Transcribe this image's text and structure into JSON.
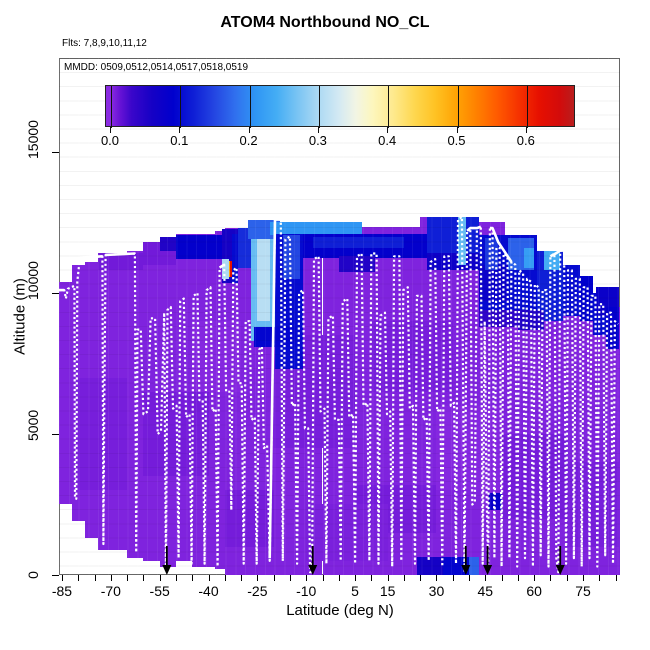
{
  "title": "ATOM4 Northbound NO_CL",
  "subtitle_flights": "Flts: 7,8,9,10,11,12",
  "mmdd_label": "MMDD: 0509,0512,0514,0517,0518,0519",
  "colorbar": {
    "tick_labels": [
      "0.0",
      "0.1",
      "0.2",
      "0.3",
      "0.4",
      "0.5",
      "0.6"
    ],
    "tick_values": [
      0.0,
      0.1,
      0.2,
      0.3,
      0.4,
      0.5,
      0.6
    ],
    "value_min": 0.0,
    "value_max": 0.675,
    "stops": [
      [
        0.0,
        "#8a2be2"
      ],
      [
        0.012,
        "#6a14d6"
      ],
      [
        0.03,
        "#3a06ca"
      ],
      [
        0.06,
        "#1501c5"
      ],
      [
        0.09,
        "#0000cd"
      ],
      [
        0.12,
        "#0f1fd6"
      ],
      [
        0.15,
        "#2446e2"
      ],
      [
        0.18,
        "#3070ee"
      ],
      [
        0.21,
        "#2f96f4"
      ],
      [
        0.24,
        "#44adf4"
      ],
      [
        0.27,
        "#79c4f3"
      ],
      [
        0.3,
        "#abd9f3"
      ],
      [
        0.33,
        "#d3e9f3"
      ],
      [
        0.355,
        "#f2f5e4"
      ],
      [
        0.38,
        "#fdf6bc"
      ],
      [
        0.41,
        "#fee98c"
      ],
      [
        0.44,
        "#fed74f"
      ],
      [
        0.47,
        "#ffc223"
      ],
      [
        0.5,
        "#ffa405"
      ],
      [
        0.53,
        "#ff8000"
      ],
      [
        0.56,
        "#ff5a00"
      ],
      [
        0.59,
        "#f63300"
      ],
      [
        0.62,
        "#e71000"
      ],
      [
        0.65,
        "#d30b0b"
      ],
      [
        0.675,
        "#b42121"
      ]
    ]
  },
  "axes": {
    "x": {
      "label": "Latitude (deg N)",
      "lim": [
        -85.92,
        86.36
      ],
      "major_ticks": [
        -85,
        -70,
        -55,
        -40,
        -25,
        -10,
        5,
        15,
        30,
        45,
        60,
        75
      ],
      "major_labels": [
        "-85",
        "-70",
        "-55",
        "-40",
        "-25",
        "-10",
        "5",
        "15",
        "30",
        "45",
        "60",
        "75"
      ],
      "minor_start": -85,
      "minor_end": 85,
      "minor_step": 5
    },
    "y": {
      "label": "Altitude (m)",
      "lim": [
        0,
        18330
      ],
      "ticks": [
        0,
        5000,
        10000,
        15000
      ],
      "tick_labels": [
        "0",
        "5000",
        "10000",
        "15000"
      ]
    }
  },
  "chart_data": {
    "type": "heatmap",
    "value_units": "NO_CL colorbar units (0.0 - 0.675)",
    "track_color": "#ffffff",
    "arrow_color": "#000000",
    "arrows_lat": [
      -52.8,
      -8.0,
      39.0,
      45.7,
      68.0
    ],
    "patches": [
      [
        -86,
        -82,
        2500,
        10400,
        0.004
      ],
      [
        -82,
        -78,
        1900,
        11000,
        0.004
      ],
      [
        -78,
        -74,
        1300,
        11100,
        0.004
      ],
      [
        -74,
        -70,
        900,
        11400,
        0.004
      ],
      [
        -70,
        -65,
        900,
        11400,
        0.004
      ],
      [
        -65,
        -60,
        600,
        11500,
        0.004
      ],
      [
        -60,
        -55,
        500,
        11700,
        0.004
      ],
      [
        -55,
        -50,
        300,
        12000,
        0.004
      ],
      [
        -50,
        -45,
        500,
        12100,
        0.004
      ],
      [
        -45,
        -38,
        300,
        12100,
        0.004
      ],
      [
        -38,
        -35,
        200,
        12200,
        0.004
      ],
      [
        -35,
        -28,
        0,
        12300,
        0.004
      ],
      [
        -28,
        -18,
        0,
        12600,
        0.004
      ],
      [
        -18,
        -5,
        0,
        12400,
        0.004
      ],
      [
        -5,
        25,
        0,
        12350,
        0.004
      ],
      [
        25,
        43,
        0,
        12700,
        0.004
      ],
      [
        43,
        51,
        0,
        12500,
        0.004
      ],
      [
        51,
        61,
        0,
        12000,
        0.004
      ],
      [
        61,
        69,
        0,
        11500,
        0.004
      ],
      [
        69,
        74,
        0,
        11000,
        0.004
      ],
      [
        74,
        78,
        0,
        10600,
        0.004
      ],
      [
        78,
        82,
        0,
        10000,
        0.004
      ],
      [
        82,
        86.4,
        0,
        9500,
        0.004
      ],
      [
        -80,
        -65,
        3000,
        7000,
        0.007
      ],
      [
        -60,
        -40,
        3500,
        6500,
        0.008
      ],
      [
        -45,
        -30,
        6500,
        9000,
        0.002
      ],
      [
        -35,
        -20,
        1000,
        3000,
        0.008
      ],
      [
        -20,
        5,
        4500,
        8500,
        0.007
      ],
      [
        10,
        35,
        6500,
        9000,
        0.007
      ],
      [
        5,
        30,
        1500,
        3200,
        0.008
      ],
      [
        30,
        50,
        3000,
        6000,
        0.002
      ],
      [
        50,
        70,
        2000,
        5000,
        0.008
      ],
      [
        60,
        86,
        6000,
        8500,
        0.003
      ],
      [
        -10,
        15,
        500,
        2500,
        0.006
      ],
      [
        70,
        86,
        1000,
        4000,
        0.007
      ],
      [
        -74,
        -60,
        10800,
        11400,
        0.009
      ],
      [
        -60,
        -50,
        11000,
        11800,
        0.009
      ],
      [
        -50,
        -36,
        11200,
        12050,
        0.085
      ],
      [
        -55,
        -50,
        11500,
        12000,
        0.05
      ],
      [
        -36,
        -31,
        10350,
        12250,
        0.06
      ],
      [
        -36,
        -33.6,
        10500,
        11200,
        0.3
      ],
      [
        -33.8,
        -33.3,
        10550,
        11150,
        0.5
      ],
      [
        -33.3,
        -32.8,
        10550,
        11150,
        0.62
      ],
      [
        -32.8,
        -31,
        10350,
        12100,
        0.1
      ],
      [
        -31,
        -27,
        10900,
        12300,
        0.13
      ],
      [
        -27,
        -19.5,
        8300,
        12000,
        0.26
      ],
      [
        -25,
        -21,
        9000,
        12550,
        0.31
      ],
      [
        -28,
        -18,
        11900,
        12600,
        0.17
      ],
      [
        -21,
        7,
        12050,
        12500,
        0.21
      ],
      [
        -19.5,
        -11,
        7300,
        12100,
        0.1
      ],
      [
        -17,
        -12,
        10500,
        12050,
        0.15
      ],
      [
        -26,
        -13,
        8100,
        8800,
        0.095
      ],
      [
        -11,
        27,
        11250,
        12100,
        0.085
      ],
      [
        -8,
        20,
        11600,
        12000,
        0.12
      ],
      [
        0,
        11,
        10750,
        11300,
        0.05
      ],
      [
        27,
        43,
        11400,
        12700,
        0.12
      ],
      [
        27,
        43,
        10800,
        11400,
        0.07
      ],
      [
        36.5,
        39,
        11000,
        12700,
        0.26
      ],
      [
        43,
        61,
        9400,
        12050,
        0.1
      ],
      [
        43,
        52,
        9700,
        11000,
        0.075
      ],
      [
        45,
        49,
        10800,
        11950,
        0.14
      ],
      [
        52,
        60,
        10800,
        11950,
        0.17
      ],
      [
        57,
        60,
        10900,
        11600,
        0.22
      ],
      [
        61,
        69,
        9000,
        11500,
        0.12
      ],
      [
        63,
        68,
        10800,
        11500,
        0.24
      ],
      [
        69,
        74,
        9200,
        11000,
        0.1
      ],
      [
        74,
        78,
        9000,
        10600,
        0.09
      ],
      [
        78,
        82,
        8500,
        10000,
        0.1
      ],
      [
        79,
        86,
        9200,
        10200,
        0.075
      ],
      [
        82,
        86,
        8000,
        9500,
        0.085
      ],
      [
        55,
        63,
        8700,
        9400,
        0.05
      ],
      [
        43,
        55,
        8800,
        9400,
        0.04
      ],
      [
        24,
        32,
        0,
        650,
        0.06
      ],
      [
        32,
        40,
        0,
        650,
        0.095
      ],
      [
        40,
        43,
        0,
        650,
        0.17
      ],
      [
        46,
        50,
        2300,
        2900,
        0.08
      ]
    ],
    "flight_track": [
      [
        -86,
        10100
      ],
      [
        -84.3,
        10100
      ],
      [
        -83.8,
        9800
      ],
      [
        -83.2,
        10150
      ],
      [
        -81.2,
        10250
      ],
      [
        -81,
        2700
      ],
      [
        -80.6,
        2700
      ],
      [
        -80.3,
        10400
      ],
      [
        -79.5,
        11250
      ],
      [
        -72.6,
        11300
      ],
      [
        -72.3,
        1100
      ],
      [
        -72,
        6200
      ],
      [
        -71.6,
        11350
      ],
      [
        -62.6,
        11400
      ],
      [
        -62.2,
        800
      ],
      [
        -61.8,
        8700
      ],
      [
        -60.8,
        8700
      ],
      [
        -60,
        5700
      ],
      [
        -58.6,
        5800
      ],
      [
        -57.8,
        9100
      ],
      [
        -56.4,
        9100
      ],
      [
        -55.6,
        5000
      ],
      [
        -54.6,
        5100
      ],
      [
        -53.6,
        9300
      ],
      [
        -53.1,
        200
      ],
      [
        -52.6,
        9400
      ],
      [
        -51.6,
        9500
      ],
      [
        -50.9,
        5900
      ],
      [
        -49.8,
        6000
      ],
      [
        -49.2,
        600
      ],
      [
        -48.7,
        9700
      ],
      [
        -47.6,
        9800
      ],
      [
        -46.9,
        5600
      ],
      [
        -45.8,
        5700
      ],
      [
        -45.2,
        400
      ],
      [
        -44.6,
        9900
      ],
      [
        -43.4,
        10000
      ],
      [
        -42.8,
        6200
      ],
      [
        -41.8,
        6200
      ],
      [
        -41.2,
        400
      ],
      [
        -40.6,
        10100
      ],
      [
        -39.4,
        10200
      ],
      [
        -38.8,
        5800
      ],
      [
        -37.8,
        5900
      ],
      [
        -37.2,
        300
      ],
      [
        -36.6,
        10900
      ],
      [
        -35.2,
        11000
      ],
      [
        -34.6,
        6500
      ],
      [
        -33.6,
        6500
      ],
      [
        -33,
        2300
      ],
      [
        -32.4,
        10800
      ],
      [
        -31.4,
        10900
      ],
      [
        -30.8,
        6800
      ],
      [
        -29.8,
        6800
      ],
      [
        -29.2,
        400
      ],
      [
        -28.6,
        9000
      ],
      [
        -27.4,
        9000
      ],
      [
        -26.8,
        5500
      ],
      [
        -25.8,
        5600
      ],
      [
        -25.2,
        400
      ],
      [
        -24.4,
        8000
      ],
      [
        -23.6,
        8100
      ],
      [
        -23,
        4500
      ],
      [
        -22,
        4600
      ],
      [
        -21.2,
        500
      ],
      [
        -19.6,
        12600
      ],
      [
        -17.8,
        12600
      ],
      [
        -17.2,
        500
      ],
      [
        -16.4,
        11900
      ],
      [
        -15,
        12000
      ],
      [
        -14.4,
        6000
      ],
      [
        -13.4,
        6100
      ],
      [
        -12.8,
        400
      ],
      [
        -12.2,
        10000
      ],
      [
        -11,
        10100
      ],
      [
        -10.4,
        5200
      ],
      [
        -9.4,
        5200
      ],
      [
        -8.8,
        100
      ],
      [
        -8.2,
        100
      ],
      [
        -7.6,
        11200
      ],
      [
        -6.2,
        11300
      ],
      [
        -5.6,
        5800
      ],
      [
        -4.4,
        5900
      ],
      [
        -3.8,
        400
      ],
      [
        -3.2,
        9100
      ],
      [
        -1.8,
        9200
      ],
      [
        -1.2,
        5500
      ],
      [
        0,
        5500
      ],
      [
        0.6,
        500
      ],
      [
        1.2,
        9700
      ],
      [
        2.6,
        9800
      ],
      [
        3.2,
        5600
      ],
      [
        4.4,
        5700
      ],
      [
        5,
        400
      ],
      [
        5.6,
        11300
      ],
      [
        7,
        11400
      ],
      [
        7.6,
        6000
      ],
      [
        8.8,
        6100
      ],
      [
        9.4,
        500
      ],
      [
        10,
        11400
      ],
      [
        11.6,
        11400
      ],
      [
        12.2,
        400
      ],
      [
        12.8,
        9200
      ],
      [
        14.2,
        9300
      ],
      [
        14.8,
        5700
      ],
      [
        15.8,
        5800
      ],
      [
        16.4,
        300
      ],
      [
        17,
        11300
      ],
      [
        18.6,
        11300
      ],
      [
        19.2,
        500
      ],
      [
        19.8,
        10100
      ],
      [
        21.2,
        10200
      ],
      [
        21.8,
        5900
      ],
      [
        22.8,
        6000
      ],
      [
        23.4,
        400
      ],
      [
        24,
        9900
      ],
      [
        25.4,
        9900
      ],
      [
        26,
        5500
      ],
      [
        27,
        5600
      ],
      [
        27.6,
        500
      ],
      [
        28.2,
        11100
      ],
      [
        29.6,
        11200
      ],
      [
        30.2,
        5800
      ],
      [
        31.2,
        5900
      ],
      [
        31.8,
        300
      ],
      [
        32.4,
        11300
      ],
      [
        33.8,
        11300
      ],
      [
        34.4,
        6000
      ],
      [
        35.4,
        6100
      ],
      [
        36,
        400
      ],
      [
        36.6,
        12600
      ],
      [
        37.8,
        12700
      ],
      [
        38.6,
        100
      ],
      [
        39.4,
        12200
      ],
      [
        40.4,
        12300
      ],
      [
        41,
        2500
      ],
      [
        41.8,
        2600
      ],
      [
        42.4,
        12300
      ],
      [
        43.6,
        12350
      ],
      [
        44.2,
        400
      ],
      [
        44.8,
        9000
      ],
      [
        45.4,
        2900
      ],
      [
        45.9,
        100
      ],
      [
        46.4,
        12300
      ],
      [
        47.2,
        12300
      ],
      [
        47.8,
        600
      ],
      [
        48.4,
        11600
      ],
      [
        49.4,
        11600
      ],
      [
        50,
        300
      ],
      [
        50.6,
        11400
      ],
      [
        51.8,
        11300
      ],
      [
        52.4,
        600
      ],
      [
        53,
        11100
      ],
      [
        54.2,
        11000
      ],
      [
        54.8,
        300
      ],
      [
        55.4,
        10800
      ],
      [
        56.6,
        10700
      ],
      [
        57.2,
        600
      ],
      [
        57.8,
        10500
      ],
      [
        59,
        10400
      ],
      [
        59.6,
        300
      ],
      [
        60.2,
        10300
      ],
      [
        61.4,
        10200
      ],
      [
        62,
        700
      ],
      [
        62.6,
        10100
      ],
      [
        63.8,
        10100
      ],
      [
        64.4,
        300
      ],
      [
        65,
        11300
      ],
      [
        66.2,
        11400
      ],
      [
        66.8,
        600
      ],
      [
        67.4,
        100
      ],
      [
        68,
        11500
      ],
      [
        69.2,
        11500
      ],
      [
        69.8,
        400
      ],
      [
        70.4,
        10800
      ],
      [
        71.6,
        10800
      ],
      [
        72.2,
        600
      ],
      [
        72.8,
        10500
      ],
      [
        74,
        10500
      ],
      [
        74.6,
        300
      ],
      [
        75.2,
        10200
      ],
      [
        76.4,
        10200
      ],
      [
        77,
        600
      ],
      [
        77.6,
        9900
      ],
      [
        78.8,
        9900
      ],
      [
        79.4,
        300
      ],
      [
        80,
        9600
      ],
      [
        81.2,
        9600
      ],
      [
        81.8,
        700
      ],
      [
        82.4,
        9300
      ],
      [
        83.6,
        9300
      ],
      [
        84.2,
        400
      ],
      [
        84.8,
        9000
      ],
      [
        85.8,
        8900
      ]
    ],
    "track_solid_segments": [
      [
        [
          -86,
          10100
        ],
        [
          -84.3,
          10100
        ]
      ],
      [
        [
          -79.5,
          11250
        ],
        [
          -72.6,
          11300
        ]
      ],
      [
        [
          -71.6,
          11350
        ],
        [
          -62.6,
          11400
        ]
      ],
      [
        [
          -36.6,
          10900
        ],
        [
          -35.2,
          11000
        ]
      ],
      [
        [
          -21.2,
          600
        ],
        [
          -19.6,
          12600
        ],
        [
          -17.8,
          12600
        ]
      ],
      [
        [
          39.4,
          12200
        ],
        [
          40.4,
          12300
        ],
        [
          42.4,
          12300
        ],
        [
          43.6,
          12350
        ]
      ],
      [
        [
          46.4,
          12300
        ],
        [
          47.2,
          12300
        ],
        [
          49,
          11800
        ],
        [
          53,
          11100
        ]
      ],
      [
        [
          65,
          11300
        ],
        [
          66.6,
          11400
        ],
        [
          68,
          11500
        ],
        [
          69.2,
          11500
        ]
      ]
    ]
  }
}
